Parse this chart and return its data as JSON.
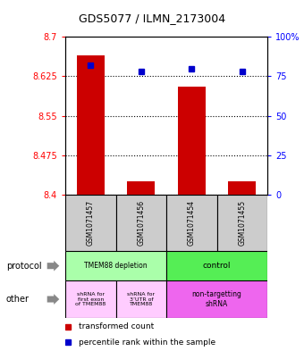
{
  "title": "GDS5077 / ILMN_2173004",
  "samples": [
    "GSM1071457",
    "GSM1071456",
    "GSM1071454",
    "GSM1071455"
  ],
  "bar_values": [
    8.665,
    8.425,
    8.605,
    8.425
  ],
  "percentile_values": [
    82,
    78,
    80,
    78
  ],
  "ylim_left": [
    8.4,
    8.7
  ],
  "ylim_right": [
    0,
    100
  ],
  "yticks_left": [
    8.4,
    8.475,
    8.55,
    8.625,
    8.7
  ],
  "ytick_labels_left": [
    "8.4",
    "8.475",
    "8.55",
    "8.625",
    "8.7"
  ],
  "yticks_right": [
    0,
    25,
    50,
    75,
    100
  ],
  "ytick_labels_right": [
    "0",
    "25",
    "50",
    "75",
    "100%"
  ],
  "bar_color": "#cc0000",
  "dot_color": "#0000cc",
  "bar_width": 0.55,
  "protocol_label_left": "TMEM88 depletion",
  "protocol_label_right": "control",
  "protocol_color_left": "#aaffaa",
  "protocol_color_right": "#55ee55",
  "other_label_0": "shRNA for\nfirst exon\nof TMEM88",
  "other_label_1": "shRNA for\n3’UTR of\nTMEM88",
  "other_label_2": "non-targetting\nshRNA",
  "other_color_01": "#ffccff",
  "other_color_2": "#ee66ee",
  "legend_bar_label": "transformed count",
  "legend_dot_label": "percentile rank within the sample",
  "left_label_protocol": "protocol",
  "left_label_other": "other",
  "grid_color": "black",
  "sample_bg": "#cccccc",
  "title_fontsize": 9,
  "axis_fontsize": 7,
  "sample_fontsize": 5.5,
  "table_fontsize": 5.5,
  "legend_fontsize": 6.5
}
